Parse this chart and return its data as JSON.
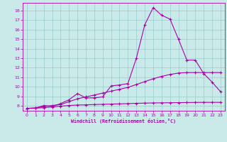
{
  "xlabel": "Windchill (Refroidissement éolien,°C)",
  "xlim": [
    -0.5,
    23.5
  ],
  "ylim": [
    7.5,
    18.8
  ],
  "xticks": [
    0,
    1,
    2,
    3,
    4,
    5,
    6,
    7,
    8,
    9,
    10,
    11,
    12,
    13,
    14,
    15,
    16,
    17,
    18,
    19,
    20,
    21,
    22,
    23
  ],
  "yticks": [
    8,
    9,
    10,
    11,
    12,
    13,
    14,
    15,
    16,
    17,
    18
  ],
  "bg_color": "#caeaea",
  "line_color": "#aa00aa",
  "grid_color": "#99cccc",
  "line1_x": [
    0,
    1,
    2,
    3,
    4,
    5,
    6,
    7,
    8,
    9,
    10,
    11,
    12,
    13,
    14,
    15,
    16,
    17,
    18,
    19,
    20,
    21,
    22,
    23
  ],
  "line1_y": [
    7.75,
    7.78,
    8.05,
    7.95,
    8.25,
    8.65,
    9.3,
    8.85,
    8.85,
    8.95,
    10.1,
    10.2,
    10.35,
    13.0,
    16.5,
    18.3,
    17.5,
    17.1,
    15.0,
    12.8,
    12.8,
    11.4,
    10.5,
    9.5
  ],
  "line2_x": [
    0,
    1,
    2,
    3,
    4,
    5,
    6,
    7,
    8,
    9,
    10,
    11,
    12,
    13,
    14,
    15,
    16,
    17,
    18,
    19,
    20,
    21,
    22,
    23
  ],
  "line2_y": [
    7.75,
    7.78,
    7.95,
    8.05,
    8.15,
    8.45,
    8.75,
    8.95,
    9.15,
    9.35,
    9.55,
    9.75,
    9.95,
    10.25,
    10.55,
    10.85,
    11.1,
    11.3,
    11.45,
    11.5,
    11.5,
    11.5,
    11.5,
    11.5
  ],
  "line3_x": [
    0,
    1,
    2,
    3,
    4,
    5,
    6,
    7,
    8,
    9,
    10,
    11,
    12,
    13,
    14,
    15,
    16,
    17,
    18,
    19,
    20,
    21,
    22,
    23
  ],
  "line3_y": [
    7.75,
    7.78,
    7.82,
    7.9,
    7.98,
    8.05,
    8.1,
    8.12,
    8.15,
    8.18,
    8.2,
    8.22,
    8.25,
    8.28,
    8.3,
    8.32,
    8.33,
    8.34,
    8.35,
    8.36,
    8.37,
    8.38,
    8.38,
    8.38
  ]
}
